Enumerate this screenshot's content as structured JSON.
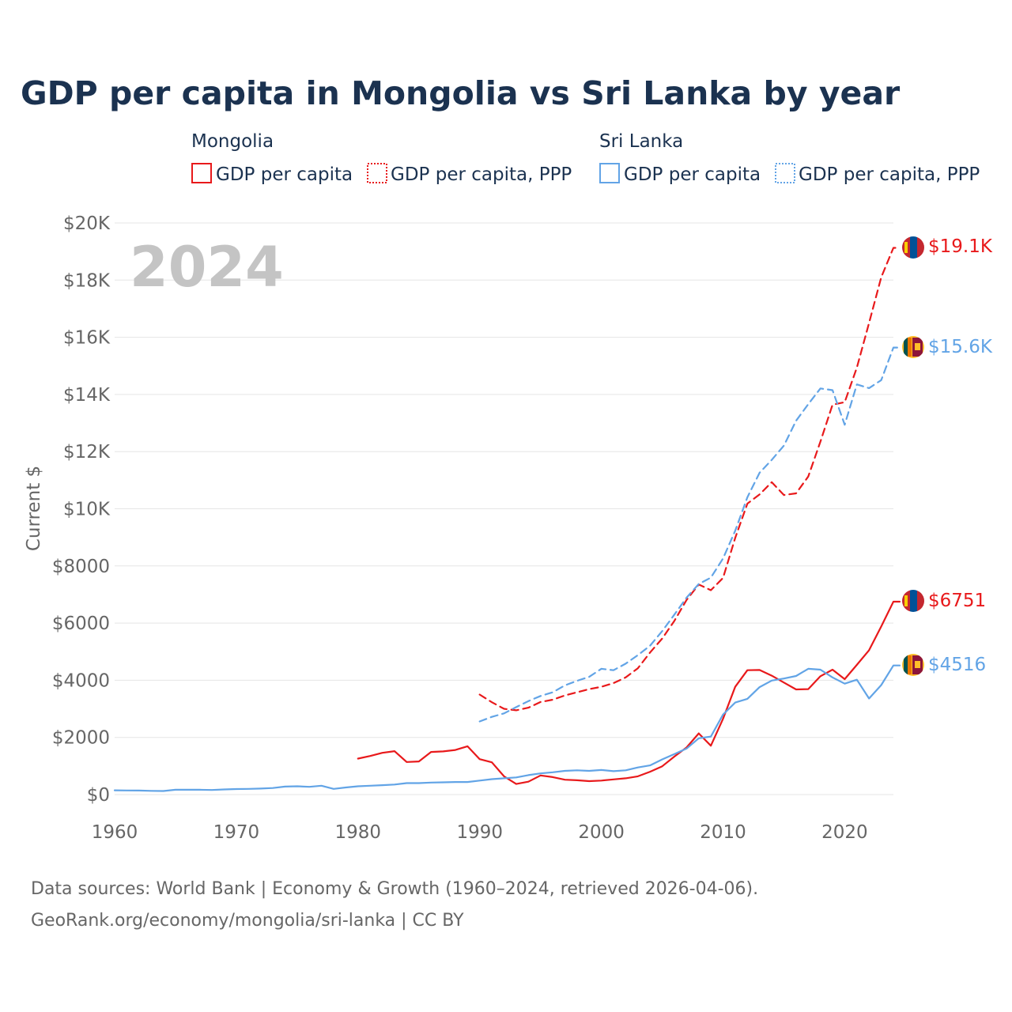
{
  "colors": {
    "mongolia": "#e8191b",
    "sri_lanka": "#62a4e6",
    "title": "#1b3250",
    "axis_text": "#666666",
    "grid": "#e5e5e5",
    "watermark": "#c4c4c4"
  },
  "title": "GDP per capita in Mongolia vs Sri Lanka by year",
  "watermark_year": "2024",
  "legend": {
    "groups": [
      {
        "name": "Mongolia",
        "items": [
          {
            "label": "GDP per capita",
            "style": "solid"
          },
          {
            "label": "GDP per capita, PPP",
            "style": "dotted"
          }
        ]
      },
      {
        "name": "Sri Lanka",
        "items": [
          {
            "label": "GDP per capita",
            "style": "solid"
          },
          {
            "label": "GDP per capita, PPP",
            "style": "dotted"
          }
        ]
      }
    ]
  },
  "source": {
    "line1": "Data sources: World Bank | Economy & Growth (1960–2024, retrieved 2026-04-06).",
    "line2": "GeoRank.org/economy/mongolia/sri-lanka | CC BY"
  },
  "chart_data": {
    "type": "line",
    "title": "GDP per capita in Mongolia vs Sri Lanka by year",
    "xlabel": "",
    "ylabel": "Current $",
    "xlim": [
      1960,
      2024
    ],
    "ylim": [
      0,
      20000
    ],
    "x_ticks": [
      "1960",
      "1970",
      "1980",
      "1990",
      "2000",
      "2010",
      "2020"
    ],
    "y_ticks": [
      {
        "value": 0,
        "label": "$0"
      },
      {
        "value": 2000,
        "label": "$2000"
      },
      {
        "value": 4000,
        "label": "$4000"
      },
      {
        "value": 6000,
        "label": "$6000"
      },
      {
        "value": 8000,
        "label": "$8000"
      },
      {
        "value": 10000,
        "label": "$10K"
      },
      {
        "value": 12000,
        "label": "$12K"
      },
      {
        "value": 14000,
        "label": "$14K"
      },
      {
        "value": 16000,
        "label": "$16K"
      },
      {
        "value": 18000,
        "label": "$18K"
      },
      {
        "value": 20000,
        "label": "$20K"
      }
    ],
    "grid": true,
    "series": [
      {
        "name": "Mongolia GDP per capita",
        "color": "#e8191b",
        "style": "solid",
        "end_label": "$6751",
        "flag": "mongolia",
        "points": [
          [
            1980,
            1260
          ],
          [
            1981,
            1350
          ],
          [
            1982,
            1460
          ],
          [
            1983,
            1520
          ],
          [
            1984,
            1140
          ],
          [
            1985,
            1160
          ],
          [
            1986,
            1490
          ],
          [
            1987,
            1510
          ],
          [
            1988,
            1560
          ],
          [
            1989,
            1690
          ],
          [
            1990,
            1240
          ],
          [
            1991,
            1130
          ],
          [
            1992,
            640
          ],
          [
            1993,
            370
          ],
          [
            1994,
            450
          ],
          [
            1995,
            670
          ],
          [
            1996,
            610
          ],
          [
            1997,
            520
          ],
          [
            1998,
            500
          ],
          [
            1999,
            470
          ],
          [
            2000,
            490
          ],
          [
            2001,
            530
          ],
          [
            2002,
            570
          ],
          [
            2003,
            640
          ],
          [
            2004,
            800
          ],
          [
            2005,
            990
          ],
          [
            2006,
            1330
          ],
          [
            2007,
            1650
          ],
          [
            2008,
            2140
          ],
          [
            2009,
            1710
          ],
          [
            2010,
            2650
          ],
          [
            2011,
            3770
          ],
          [
            2012,
            4350
          ],
          [
            2013,
            4360
          ],
          [
            2014,
            4160
          ],
          [
            2015,
            3920
          ],
          [
            2016,
            3680
          ],
          [
            2017,
            3690
          ],
          [
            2018,
            4140
          ],
          [
            2019,
            4370
          ],
          [
            2020,
            4040
          ],
          [
            2021,
            4540
          ],
          [
            2022,
            5050
          ],
          [
            2023,
            5880
          ],
          [
            2024,
            6751
          ]
        ]
      },
      {
        "name": "Mongolia GDP per capita, PPP",
        "color": "#e8191b",
        "style": "dashed",
        "end_label": "$19.1K",
        "flag": "mongolia",
        "points": [
          [
            1990,
            3500
          ],
          [
            1991,
            3230
          ],
          [
            1992,
            3000
          ],
          [
            1993,
            2950
          ],
          [
            1994,
            3040
          ],
          [
            1995,
            3240
          ],
          [
            1996,
            3320
          ],
          [
            1997,
            3470
          ],
          [
            1998,
            3580
          ],
          [
            1999,
            3690
          ],
          [
            2000,
            3770
          ],
          [
            2001,
            3900
          ],
          [
            2002,
            4100
          ],
          [
            2003,
            4420
          ],
          [
            2004,
            4970
          ],
          [
            2005,
            5460
          ],
          [
            2006,
            6080
          ],
          [
            2007,
            6810
          ],
          [
            2008,
            7350
          ],
          [
            2009,
            7150
          ],
          [
            2010,
            7580
          ],
          [
            2011,
            8980
          ],
          [
            2012,
            10180
          ],
          [
            2013,
            10500
          ],
          [
            2014,
            10930
          ],
          [
            2015,
            10480
          ],
          [
            2016,
            10540
          ],
          [
            2017,
            11130
          ],
          [
            2018,
            12350
          ],
          [
            2019,
            13640
          ],
          [
            2020,
            13730
          ],
          [
            2021,
            14940
          ],
          [
            2022,
            16500
          ],
          [
            2023,
            18100
          ],
          [
            2024,
            19130
          ]
        ]
      },
      {
        "name": "Sri Lanka GDP per capita",
        "color": "#62a4e6",
        "style": "solid",
        "end_label": "$4516",
        "flag": "sri-lanka",
        "points": [
          [
            1960,
            150
          ],
          [
            1961,
            145
          ],
          [
            1962,
            140
          ],
          [
            1963,
            130
          ],
          [
            1964,
            125
          ],
          [
            1965,
            170
          ],
          [
            1966,
            170
          ],
          [
            1967,
            170
          ],
          [
            1968,
            160
          ],
          [
            1969,
            180
          ],
          [
            1970,
            195
          ],
          [
            1971,
            200
          ],
          [
            1972,
            210
          ],
          [
            1973,
            230
          ],
          [
            1974,
            280
          ],
          [
            1975,
            290
          ],
          [
            1976,
            270
          ],
          [
            1977,
            310
          ],
          [
            1978,
            200
          ],
          [
            1979,
            250
          ],
          [
            1980,
            290
          ],
          [
            1981,
            310
          ],
          [
            1982,
            330
          ],
          [
            1983,
            350
          ],
          [
            1984,
            400
          ],
          [
            1985,
            400
          ],
          [
            1986,
            420
          ],
          [
            1987,
            430
          ],
          [
            1988,
            440
          ],
          [
            1989,
            440
          ],
          [
            1990,
            490
          ],
          [
            1991,
            540
          ],
          [
            1992,
            570
          ],
          [
            1993,
            600
          ],
          [
            1994,
            680
          ],
          [
            1995,
            740
          ],
          [
            1996,
            780
          ],
          [
            1997,
            830
          ],
          [
            1998,
            850
          ],
          [
            1999,
            830
          ],
          [
            2000,
            860
          ],
          [
            2001,
            820
          ],
          [
            2002,
            850
          ],
          [
            2003,
            950
          ],
          [
            2004,
            1020
          ],
          [
            2005,
            1230
          ],
          [
            2006,
            1420
          ],
          [
            2007,
            1610
          ],
          [
            2008,
            1970
          ],
          [
            2009,
            2030
          ],
          [
            2010,
            2800
          ],
          [
            2011,
            3220
          ],
          [
            2012,
            3350
          ],
          [
            2013,
            3760
          ],
          [
            2014,
            3990
          ],
          [
            2015,
            4060
          ],
          [
            2016,
            4150
          ],
          [
            2017,
            4400
          ],
          [
            2018,
            4370
          ],
          [
            2019,
            4100
          ],
          [
            2020,
            3880
          ],
          [
            2021,
            4020
          ],
          [
            2022,
            3360
          ],
          [
            2023,
            3830
          ],
          [
            2024,
            4516
          ]
        ]
      },
      {
        "name": "Sri Lanka GDP per capita, PPP",
        "color": "#62a4e6",
        "style": "dashed",
        "end_label": "$15.6K",
        "flag": "sri-lanka",
        "points": [
          [
            1990,
            2560
          ],
          [
            1991,
            2720
          ],
          [
            1992,
            2840
          ],
          [
            1993,
            3060
          ],
          [
            1994,
            3270
          ],
          [
            1995,
            3450
          ],
          [
            1996,
            3580
          ],
          [
            1997,
            3820
          ],
          [
            1998,
            3980
          ],
          [
            1999,
            4120
          ],
          [
            2000,
            4400
          ],
          [
            2001,
            4350
          ],
          [
            2002,
            4580
          ],
          [
            2003,
            4880
          ],
          [
            2004,
            5210
          ],
          [
            2005,
            5720
          ],
          [
            2006,
            6300
          ],
          [
            2007,
            6890
          ],
          [
            2008,
            7370
          ],
          [
            2009,
            7590
          ],
          [
            2010,
            8260
          ],
          [
            2011,
            9230
          ],
          [
            2012,
            10400
          ],
          [
            2013,
            11260
          ],
          [
            2014,
            11710
          ],
          [
            2015,
            12210
          ],
          [
            2016,
            13080
          ],
          [
            2017,
            13660
          ],
          [
            2018,
            14210
          ],
          [
            2019,
            14150
          ],
          [
            2020,
            12940
          ],
          [
            2021,
            14350
          ],
          [
            2022,
            14220
          ],
          [
            2023,
            14500
          ],
          [
            2024,
            15640
          ]
        ]
      }
    ]
  }
}
